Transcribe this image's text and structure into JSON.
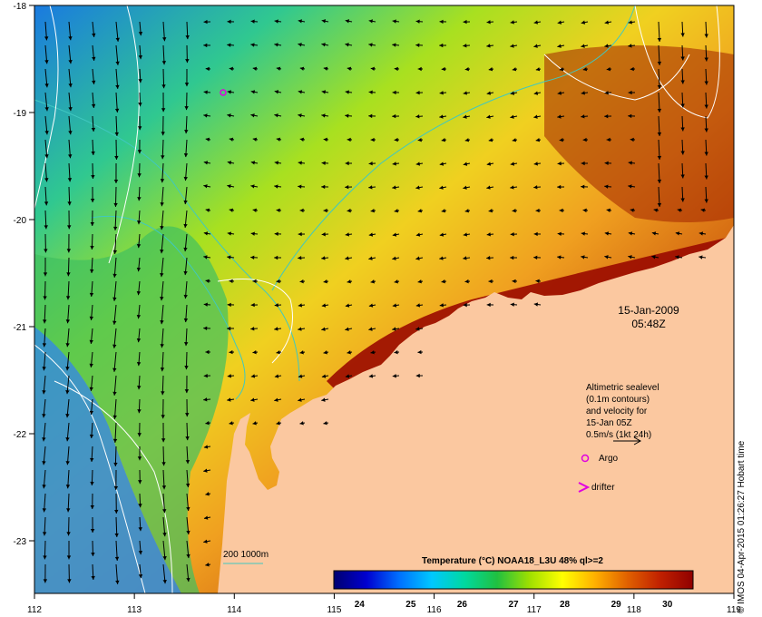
{
  "map": {
    "lon_ticks": [
      "112",
      "113",
      "114",
      "115",
      "116",
      "117",
      "118",
      "119"
    ],
    "lat_ticks": [
      "-18",
      "-19",
      "-20",
      "-21",
      "-22",
      "-23"
    ],
    "date_label": "15-Jan-2009",
    "time_label": "05:48Z"
  },
  "legend": {
    "lines": [
      "Altimetric sealevel",
      "(0.1m contours)",
      "and velocity for",
      "15-Jan 05Z",
      "0.5m/s (1kt 24h)"
    ],
    "argo_label": "Argo",
    "drifter_label": "drifter",
    "depth_label": "200  1000m",
    "colorbar_title": "Temperature (°C) NOAA18_L3U 48% ql>=2",
    "colorbar_ticks": [
      "24",
      "25",
      "26",
      "27",
      "28",
      "29",
      "30"
    ],
    "colorbar_stops": [
      "#000070",
      "#0000d0",
      "#0070ff",
      "#00c8ff",
      "#00d8a0",
      "#20c040",
      "#a0e000",
      "#ffff00",
      "#ffb000",
      "#e06000",
      "#c02000",
      "#900000"
    ]
  },
  "credit": "© IMOS 04-Apr-2015 01:26:27 Hobart time",
  "colors": {
    "land": "#fbc8a0",
    "isobath": "#40c8c0",
    "contour": "#ffffff",
    "argo": "#e000e0",
    "drifter": "#e000e0"
  }
}
